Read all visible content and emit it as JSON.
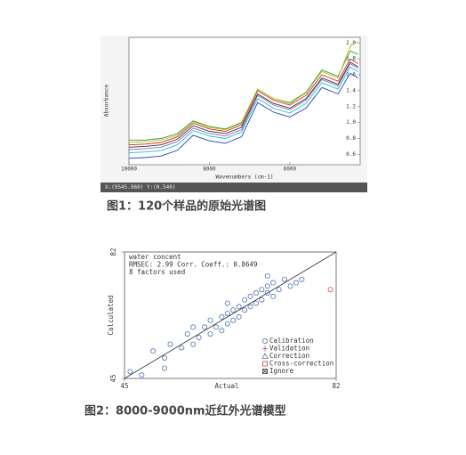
{
  "chart_data": [
    {
      "type": "line",
      "caption": "图1：120个样品的原始光谱图",
      "y_label": "Absorbance",
      "x_label": "Wavenumbers (cm-1)",
      "status": "X:(9545.960) Y:(0.540)",
      "x": [
        10000,
        9600,
        9200,
        8800,
        8400,
        8000,
        7600,
        7200,
        6800,
        6400,
        6000,
        5600,
        5200,
        4800,
        4500,
        4300
      ],
      "xlim": [
        10000,
        4250
      ],
      "xticks": [
        10000,
        8000,
        6000
      ],
      "ylim": [
        0.47,
        2.07
      ],
      "yticks": [
        0.6,
        0.8,
        {
          "value": 1,
          "label": "1.0"
        },
        1.2,
        1.4,
        1.6,
        1.8,
        {
          "value": 2,
          "label": "2.0"
        }
      ],
      "series": [
        {
          "color": "#2ca02c",
          "values": [
            0.78,
            0.78,
            0.8,
            0.86,
            1.02,
            0.95,
            0.92,
            1.0,
            1.42,
            1.3,
            1.25,
            1.38,
            1.66,
            1.58,
            1.9,
            1.86
          ]
        },
        {
          "color": "#1f3fbf",
          "values": [
            0.55,
            0.56,
            0.58,
            0.65,
            0.84,
            0.77,
            0.74,
            0.82,
            1.25,
            1.13,
            1.07,
            1.18,
            1.44,
            1.36,
            1.62,
            1.56
          ]
        },
        {
          "color": "#d62728",
          "values": [
            0.72,
            0.73,
            0.75,
            0.82,
            0.99,
            0.92,
            0.89,
            0.97,
            1.4,
            1.28,
            1.22,
            1.34,
            1.6,
            1.52,
            1.8,
            1.74
          ]
        },
        {
          "color": "#9467bd",
          "values": [
            0.66,
            0.67,
            0.69,
            0.76,
            0.93,
            0.86,
            0.83,
            0.91,
            1.34,
            1.22,
            1.16,
            1.28,
            1.54,
            1.46,
            1.74,
            1.68
          ]
        },
        {
          "color": "#17becf",
          "values": [
            0.62,
            0.63,
            0.65,
            0.72,
            0.9,
            0.83,
            0.8,
            0.88,
            1.3,
            1.18,
            1.12,
            1.24,
            1.5,
            1.42,
            1.7,
            1.64
          ]
        },
        {
          "color": "#bcbd22",
          "values": [
            0.75,
            0.76,
            0.78,
            0.84,
            1.01,
            0.94,
            0.91,
            0.99,
            1.42,
            1.3,
            1.24,
            1.37,
            1.64,
            1.56,
            1.96,
            2.02
          ]
        },
        {
          "color": "#333333",
          "values": [
            0.69,
            0.7,
            0.72,
            0.79,
            0.96,
            0.89,
            0.86,
            0.94,
            1.36,
            1.24,
            1.18,
            1.3,
            1.56,
            1.48,
            1.76,
            1.7
          ]
        }
      ]
    },
    {
      "type": "scatter",
      "caption": "图2：8000-9000nm近红外光谱模型",
      "x_label": "Actual",
      "y_label": "Calculated",
      "annotations": [
        "water concent",
        "RMSEC: 2.99   Corr. Coeff.: 0.8649",
        "8 factors used"
      ],
      "xlim": [
        45,
        82
      ],
      "xticks": [
        45,
        82
      ],
      "ylim": [
        45,
        82
      ],
      "yticks": [
        45,
        82
      ],
      "series": [
        {
          "name": "Calibration",
          "color": "#4a6fb5",
          "marker": "circle",
          "x": [
            46,
            48,
            50,
            52,
            53,
            55,
            56,
            57,
            58,
            59,
            60,
            60,
            61,
            62,
            62,
            63,
            63,
            64,
            64,
            65,
            65,
            66,
            66,
            67,
            67,
            68,
            68,
            69,
            69,
            70,
            70,
            71,
            71,
            72,
            73,
            74,
            75,
            76,
            52,
            57,
            63,
            70
          ],
          "y": [
            47,
            46,
            53,
            51,
            55,
            54,
            58,
            55,
            57,
            60,
            58,
            62,
            60,
            63,
            59,
            64,
            61,
            65,
            62,
            66,
            63,
            65,
            68,
            66,
            69,
            67,
            70,
            68,
            71,
            70,
            72,
            69,
            73,
            71,
            74,
            72,
            73,
            74,
            48,
            60,
            67,
            75
          ]
        },
        {
          "name": "Validation",
          "color": "#8a4fb5",
          "marker": "plus",
          "x": [],
          "y": []
        },
        {
          "name": "Correction",
          "color": "#4a6fb5",
          "marker": "triangle",
          "x": [],
          "y": []
        },
        {
          "name": "Cross-correction",
          "color": "#c04040",
          "marker": "square",
          "x": [],
          "y": []
        },
        {
          "name": "Ignore",
          "color": "#333333",
          "marker": "xsquare",
          "x": [],
          "y": []
        },
        {
          "color": "#e0463c",
          "marker": "circle",
          "x": [
            81
          ],
          "y": [
            71
          ]
        }
      ]
    }
  ]
}
